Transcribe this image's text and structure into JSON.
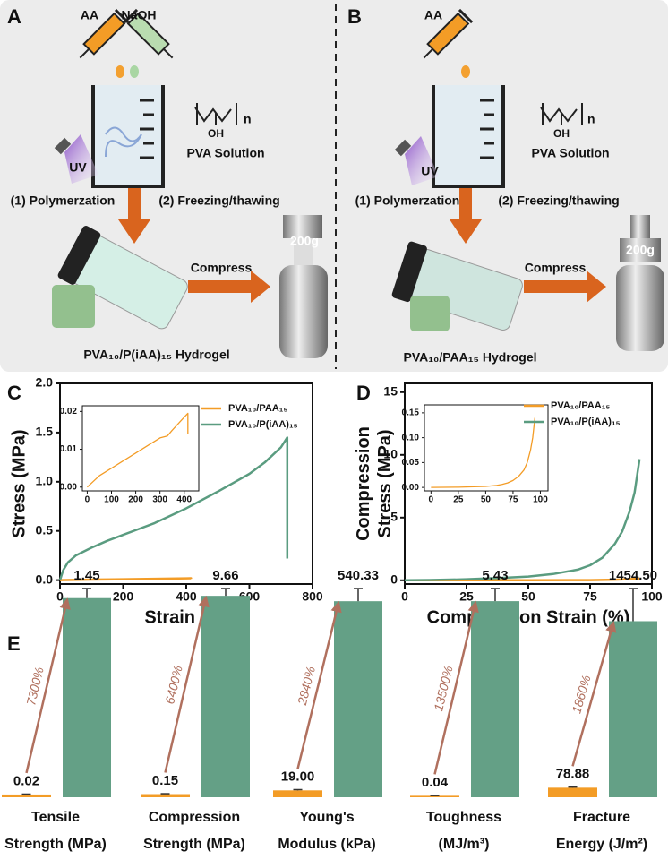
{
  "schematic": {
    "panels": [
      {
        "label": "A",
        "reagents": [
          "AA",
          "NaOH"
        ],
        "repeat": "n",
        "group": "OH",
        "solution": "PVA Solution",
        "light": "UV",
        "steps": [
          "(1) Polymerzation",
          "(2) Freezing/thawing"
        ],
        "action": "Compress",
        "weight": "200g",
        "product": "PVA₁₀/P(iAA)₁₅ Hydrogel"
      },
      {
        "label": "B",
        "reagents": [
          "AA"
        ],
        "repeat": "n",
        "group": "OH",
        "solution": "PVA Solution",
        "light": "UV",
        "steps": [
          "(1) Polymerzation",
          "(2) Freezing/thawing"
        ],
        "action": "Compress",
        "weight": "200g",
        "product": "PVA₁₀/PAA₁₅ Hydrogel"
      }
    ]
  },
  "chart_data": [
    {
      "type": "line",
      "label": "C",
      "xlabel": "Strain (%)",
      "ylabel": "Stress (MPa)",
      "xlim": [
        0,
        800
      ],
      "ylim": [
        -0.04,
        2.0
      ],
      "xticks": [
        0,
        200,
        400,
        600,
        800
      ],
      "yticks": [
        {
          "value": 0,
          "label": "0.0"
        },
        0.5,
        {
          "value": 1,
          "label": "1.0"
        },
        1.5,
        {
          "value": 2,
          "label": "2.0"
        }
      ],
      "legend": "upper right",
      "series": [
        {
          "name": "PVA₁₀/PAA₁₅",
          "color": "#f39c26",
          "x": [
            0,
            100,
            200,
            300,
            400,
            415,
            415
          ],
          "values": [
            0,
            0.005,
            0.009,
            0.013,
            0.018,
            0.019,
            0.014
          ]
        },
        {
          "name": "PVA₁₀/P(iAA)₁₅",
          "color": "#5a9c80",
          "x": [
            0,
            10,
            25,
            50,
            100,
            150,
            200,
            250,
            300,
            400,
            500,
            600,
            650,
            700,
            720,
            720
          ],
          "values": [
            0,
            0.1,
            0.18,
            0.25,
            0.33,
            0.4,
            0.46,
            0.52,
            0.58,
            0.73,
            0.9,
            1.08,
            1.2,
            1.35,
            1.45,
            0.22
          ]
        }
      ],
      "inset": {
        "xlim": [
          -20,
          460
        ],
        "ylim": [
          -0.001,
          0.0215
        ],
        "xticks": [
          0,
          100,
          200,
          300,
          400
        ],
        "yticks": [
          {
            "value": 0,
            "label": "0.00"
          },
          0.01,
          0.02
        ],
        "series": [
          {
            "color": "#f39c26",
            "x": [
              0,
              25,
              50,
              100,
              150,
              200,
              250,
              300,
              330,
              350,
              400,
              415,
              415
            ],
            "values": [
              0,
              0.0015,
              0.003,
              0.005,
              0.007,
              0.009,
              0.011,
              0.013,
              0.0135,
              0.015,
              0.0185,
              0.0195,
              0.014
            ]
          }
        ]
      }
    },
    {
      "type": "line",
      "label": "D",
      "xlabel": "Compression Strain (%)",
      "ylabel": "Compression\nStress (MPa)",
      "xlim": [
        0,
        100
      ],
      "ylim": [
        -0.3,
        15.7
      ],
      "xticks": [
        0,
        25,
        50,
        75,
        100
      ],
      "yticks": [
        0,
        5,
        10,
        15
      ],
      "legend": "upper right",
      "series": [
        {
          "name": "PVA₁₀/PAA₁₅",
          "color": "#f39c26",
          "x": [
            0,
            50,
            75,
            85,
            90,
            95
          ],
          "values": [
            0,
            0.001,
            0.015,
            0.05,
            0.08,
            0.14
          ]
        },
        {
          "name": "PVA₁₀/P(iAA)₁₅",
          "color": "#5a9c80",
          "x": [
            0,
            10,
            25,
            40,
            50,
            60,
            70,
            75,
            80,
            85,
            88,
            91,
            93,
            95
          ],
          "values": [
            0,
            0.02,
            0.08,
            0.2,
            0.3,
            0.5,
            0.85,
            1.2,
            1.8,
            2.9,
            3.9,
            5.5,
            7.0,
            9.66
          ]
        }
      ],
      "inset": {
        "xlim": [
          -6,
          107
        ],
        "ylim": [
          -0.007,
          0.166
        ],
        "xticks": [
          0,
          25,
          50,
          75,
          100
        ],
        "yticks": [
          {
            "value": 0,
            "label": "0.00"
          },
          0.05,
          {
            "value": 0.1,
            "label": "0.10"
          },
          0.15
        ],
        "series": [
          {
            "color": "#f39c26",
            "x": [
              0,
              25,
              50,
              60,
              65,
              70,
              75,
              80,
              85,
              88,
              91,
              93,
              95
            ],
            "values": [
              0,
              0.0005,
              0.002,
              0.004,
              0.006,
              0.009,
              0.014,
              0.022,
              0.035,
              0.05,
              0.075,
              0.1,
              0.14
            ]
          }
        ]
      }
    },
    {
      "type": "bar",
      "label": "E",
      "categories": [
        "Tensile\nStrength (MPa)",
        "Compression\nStrength (MPa)",
        "Young's\nModulus (kPa)",
        "Toughness\n(MJ/m³)",
        "Fracture\nEnergy (J/m²)"
      ],
      "series": [
        {
          "color": "#f39c26",
          "values": [
            0.02,
            0.15,
            19,
            0.04,
            78.88
          ],
          "value_labels": [
            "0.02",
            "0.15",
            "19.00",
            "0.04",
            "78.88"
          ],
          "errors": [
            0.003,
            0.02,
            2,
            0.005,
            5
          ]
        },
        {
          "color": "#64a086",
          "values": [
            1.45,
            9.66,
            540.33,
            5.43,
            1454.5
          ],
          "value_labels": [
            "1.45",
            "9.66",
            "540.33",
            "5.43",
            "1454.50"
          ],
          "errors": [
            0.07,
            0.35,
            35,
            0.35,
            270
          ]
        }
      ],
      "annotations": [
        "7300%",
        "6400%",
        "2840%",
        "13500%",
        "1860%"
      ],
      "arrow_color": "#b0705e"
    }
  ]
}
